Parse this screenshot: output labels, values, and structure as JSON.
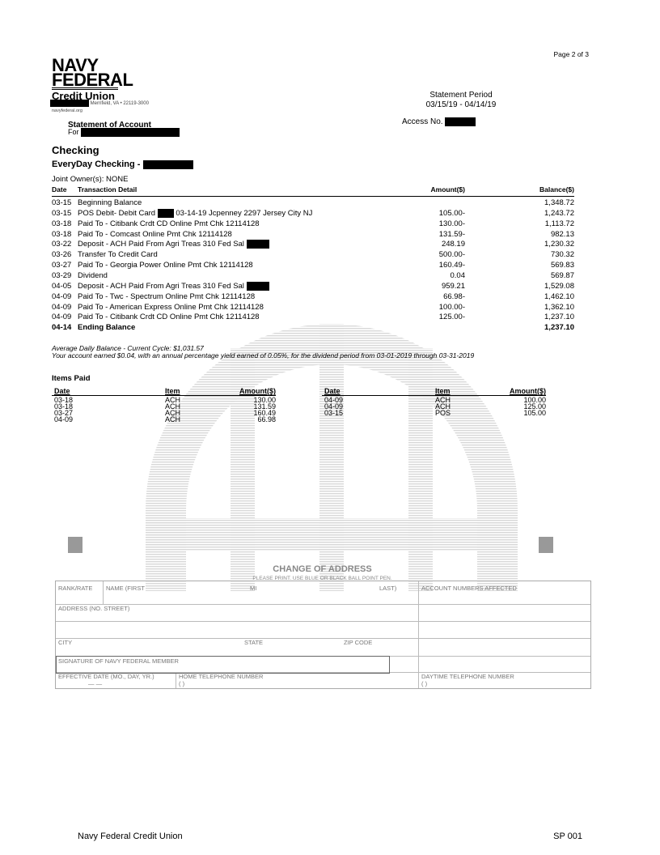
{
  "page_number": "Page 2 of 3",
  "logo": {
    "line1": "NAVY",
    "line2": "FEDERAL",
    "line3": "Credit Union"
  },
  "address": "Merrifield, VA • 22119-3000",
  "website": "navyfederal.org",
  "statement_title": "Statement of Account",
  "for_label": "For",
  "statement_period_label": "Statement Period",
  "statement_period": "03/15/19 - 04/14/19",
  "access_label": "Access No.",
  "section_title": "Checking",
  "account_name": "EveryDay Checking -",
  "joint_owner": "Joint Owner(s):  NONE",
  "columns": {
    "date": "Date",
    "detail": "Transaction Detail",
    "amount": "Amount($)",
    "balance": "Balance($)"
  },
  "transactions": [
    {
      "date": "03-15",
      "detail": "Beginning Balance",
      "amount": "",
      "balance": "1,348.72"
    },
    {
      "date": "03-15",
      "detail": "POS Debit- Debit Card",
      "detail2": "03-14-19 Jcpenney 2297 Jersey City NJ",
      "amount": "105.00-",
      "balance": "1,243.72"
    },
    {
      "date": "03-18",
      "detail": "Paid To - Citibank Crdt CD Online Pmt Chk 12114128",
      "amount": "130.00-",
      "balance": "1,113.72"
    },
    {
      "date": "03-18",
      "detail": "Paid To - Comcast Online Pmt Chk 12114128",
      "amount": "131.59-",
      "balance": "982.13"
    },
    {
      "date": "03-22",
      "detail": "Deposit - ACH Paid From Agri Treas 310 Fed Sal",
      "amount": "248.19",
      "balance": "1,230.32"
    },
    {
      "date": "03-26",
      "detail": "Transfer To Credit Card",
      "amount": "500.00-",
      "balance": "730.32"
    },
    {
      "date": "03-27",
      "detail": "Paid To - Georgia Power Online Pmt Chk 12114128",
      "amount": "160.49-",
      "balance": "569.83"
    },
    {
      "date": "03-29",
      "detail": "Dividend",
      "amount": "0.04",
      "balance": "569.87"
    },
    {
      "date": "04-05",
      "detail": "Deposit - ACH Paid From Agri Treas 310 Fed Sal",
      "amount": "959.21",
      "balance": "1,529.08"
    },
    {
      "date": "04-09",
      "detail": "Paid To - Twc - Spectrum Online Pmt Chk 12114128",
      "amount": "66.98-",
      "balance": "1,462.10"
    },
    {
      "date": "04-09",
      "detail": "Paid To - American Express Online Pmt Chk 12114128",
      "amount": "100.00-",
      "balance": "1,362.10"
    },
    {
      "date": "04-09",
      "detail": "Paid To - Citibank Crdt CD Online Pmt Chk 12114128",
      "amount": "125.00-",
      "balance": "1,237.10"
    },
    {
      "date": "04-14",
      "detail": "Ending Balance",
      "amount": "",
      "balance": "1,237.10"
    }
  ],
  "avg_balance": "Average Daily Balance - Current Cycle: $1,031.57",
  "dividend_note": "Your account earned $0.04, with an annual percentage yield earned of 0.05%, for the dividend period from 03-01-2019 through 03-31-2019",
  "items_paid": {
    "title": "Items Paid",
    "headers": {
      "date": "Date",
      "item": "Item",
      "amount": "Amount($)"
    },
    "left": [
      {
        "date": "03-18",
        "item": "ACH",
        "amount": "130.00"
      },
      {
        "date": "03-18",
        "item": "ACH",
        "amount": "131.59"
      },
      {
        "date": "03-27",
        "item": "ACH",
        "amount": "160.49"
      },
      {
        "date": "04-09",
        "item": "ACH",
        "amount": "66.98"
      }
    ],
    "right": [
      {
        "date": "04-09",
        "item": "ACH",
        "amount": "100.00"
      },
      {
        "date": "04-09",
        "item": "ACH",
        "amount": "125.00"
      },
      {
        "date": "03-15",
        "item": "POS",
        "amount": "105.00"
      }
    ]
  },
  "change_of_address": {
    "title": "CHANGE OF ADDRESS",
    "subtitle": "PLEASE PRINT.  USE BLUE OR BLACK BALL POINT PEN.",
    "rank_rate": "RANK/RATE",
    "name_first": "NAME (FIRST",
    "mi": "MI",
    "last": "LAST)",
    "account_numbers": "ACCOUNT NUMBERS AFFECTED",
    "address": "ADDRESS (NO. STREET)",
    "city": "CITY",
    "state": "STATE",
    "zip": "ZIP CODE",
    "signature": "SIGNATURE OF NAVY FEDERAL MEMBER",
    "effective_date": "EFFECTIVE DATE (MO., DAY, YR.)",
    "date_dashes": "—          —",
    "home_phone": "HOME TELEPHONE NUMBER",
    "daytime_phone": "DAYTIME TELEPHONE NUMBER",
    "phone_parens": "(            )"
  },
  "footer": {
    "left": "Navy Federal Credit Union",
    "right": "SP 001"
  }
}
